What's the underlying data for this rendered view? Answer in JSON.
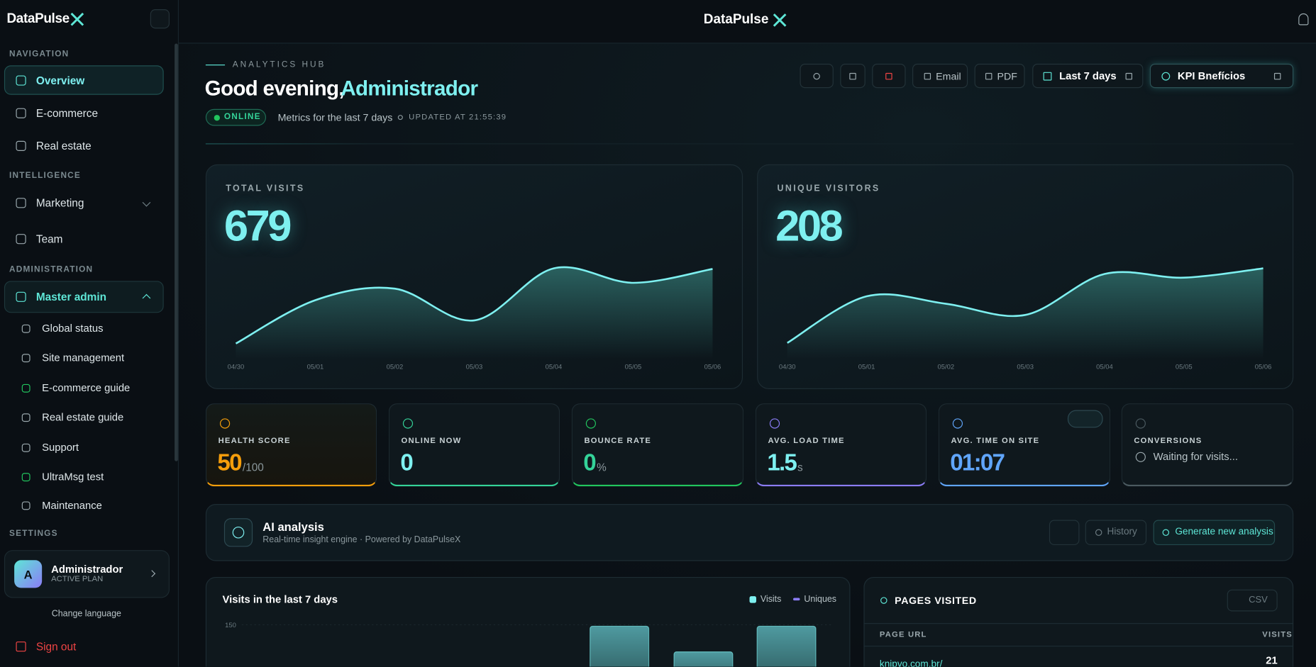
{
  "sidebar": {
    "brand": "DataPulse",
    "groups": [
      {
        "title": "NAVIGATION",
        "items": [
          "Overview",
          "E-commerce",
          "Real estate"
        ]
      },
      {
        "title": "INTELLIGENCE",
        "items": [
          "Marketing",
          "Team"
        ]
      },
      {
        "title": "ADMINISTRATION",
        "items": [
          "Master admin"
        ],
        "subitems": [
          "Global status",
          "Site management",
          "E-commerce guide",
          "Real estate guide",
          "Support",
          "UltraMsg test",
          "Maintenance"
        ]
      },
      {
        "title": "SETTINGS"
      }
    ],
    "user": {
      "initial": "A",
      "name": "Administrador",
      "plan": "ACTIVE PLAN"
    },
    "change_language": "Change language",
    "sign_out": "Sign out"
  },
  "header": {
    "brand": "DataPulse"
  },
  "hero": {
    "eyebrow": "ANALYTICS HUB",
    "greeting": "Good evening,",
    "name": "Administrador",
    "status": "ONLINE",
    "period": "Metrics for the last 7 days",
    "updated": "UPDATED AT 21:55:39"
  },
  "toolbar": {
    "email": "Email",
    "pdf": "PDF",
    "range": "Last 7 days",
    "kpi": "KPI Bnefícios"
  },
  "cards": [
    {
      "label": "TOTAL VISITS",
      "total": 679,
      "x": [
        "04/30",
        "05/01",
        "05/02",
        "05/03",
        "05/04",
        "05/05",
        "05/06"
      ],
      "values": [
        15,
        90,
        110,
        55,
        145,
        120,
        144
      ]
    },
    {
      "label": "UNIQUE VISITORS",
      "total": 208,
      "x": [
        "04/30",
        "05/01",
        "05/02",
        "05/03",
        "05/04",
        "05/05",
        "05/06"
      ],
      "values": [
        5,
        30,
        26,
        20,
        42,
        40,
        45
      ]
    }
  ],
  "kpis": [
    {
      "label": "HEALTH SCORE",
      "value": 50,
      "unit": "/100"
    },
    {
      "label": "ONLINE NOW",
      "value": 0
    },
    {
      "label": "BOUNCE RATE",
      "value": 0,
      "unit": "%"
    },
    {
      "label": "AVG. LOAD TIME",
      "value": 1.5,
      "unit": "s"
    },
    {
      "label": "AVG. TIME ON SITE",
      "value": "01:07"
    },
    {
      "label": "CONVERSIONS",
      "status": "Waiting for visits..."
    }
  ],
  "ai": {
    "title": "AI analysis",
    "subtitle": "Real-time insight engine · Powered by DataPulseX",
    "history": "History",
    "generate": "Generate new analysis"
  },
  "visits_chart": {
    "title": "Visits in the last 7 days",
    "legend": [
      "Visits",
      "Uniques"
    ],
    "yticks": [
      150
    ],
    "values": [
      149,
      131,
      149
    ]
  },
  "pages": {
    "title": "PAGES VISITED",
    "csv": "CSV",
    "columns": [
      "PAGE URL",
      "VISITS"
    ],
    "rows": [
      [
        "knipvo.com.br/",
        21
      ]
    ]
  }
}
